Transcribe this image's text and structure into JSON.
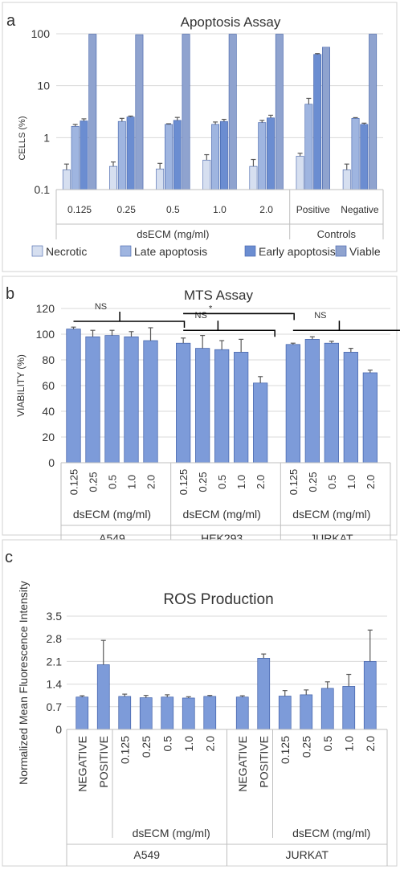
{
  "colors": {
    "necrotic": "#d6dff0",
    "late": "#9fb5e0",
    "early": "#6b8dd1",
    "viable": "#8fa3cf",
    "bar": "#7d9bd9",
    "bar_edge": "#3f5fa8"
  },
  "panels": {
    "a": {
      "letter": "a"
    },
    "b": {
      "letter": "b"
    },
    "c": {
      "letter": "c"
    }
  },
  "chart_data": [
    {
      "type": "bar",
      "title": "Apoptosis Assay",
      "ylabel": "CELLS (%)",
      "yscale": "log",
      "ylim": [
        0.1,
        100
      ],
      "yticks": [
        "0.1",
        "1",
        "10",
        "100"
      ],
      "categories": [
        "0.125",
        "0.25",
        "0.5",
        "1.0",
        "2.0",
        "Positive",
        "Negative"
      ],
      "groups": [
        {
          "label": "dsECM (mg/ml)",
          "span": [
            0,
            4
          ]
        },
        {
          "label": "Controls",
          "span": [
            5,
            6
          ]
        }
      ],
      "series": [
        {
          "name": "Necrotic",
          "color_key": "necrotic",
          "values": [
            0.24,
            0.28,
            0.25,
            0.37,
            0.28,
            0.44,
            0.24
          ],
          "errors": [
            0.07,
            0.06,
            0.07,
            0.1,
            0.1,
            0.06,
            0.07
          ]
        },
        {
          "name": "Late apoptosis",
          "color_key": "late",
          "values": [
            1.65,
            2.05,
            1.8,
            1.8,
            1.95,
            4.4,
            2.35
          ],
          "errors": [
            0.15,
            0.3,
            0.05,
            0.2,
            0.2,
            1.3,
            0.08
          ]
        },
        {
          "name": "Early apoptosis",
          "color_key": "early",
          "values": [
            2.1,
            2.5,
            2.15,
            2.05,
            2.4,
            40,
            1.8
          ],
          "errors": [
            0.2,
            0.1,
            0.3,
            0.2,
            0.3,
            1.5,
            0.1
          ]
        },
        {
          "name": "Viable",
          "color_key": "viable",
          "values": [
            98,
            96,
            98,
            98,
            98,
            55,
            98
          ],
          "errors": [
            0,
            0,
            0,
            0,
            0,
            0,
            0
          ]
        }
      ],
      "legend": "bottom"
    },
    {
      "type": "bar",
      "title": "MTS Assay",
      "ylabel": "VIABILITY (%)",
      "ylim": [
        0,
        120
      ],
      "yticks": [
        "0",
        "20",
        "40",
        "60",
        "80",
        "100",
        "120"
      ],
      "groups": [
        {
          "name": "A549",
          "sublabel": "dsECM (mg/ml)",
          "categories": [
            "0.125",
            "0.25",
            "0.5",
            "1.0",
            "2.0"
          ],
          "values": [
            104,
            98,
            99,
            98,
            95
          ],
          "errors": [
            1.5,
            5,
            4,
            4,
            10
          ]
        },
        {
          "name": "HEK293",
          "sublabel": "dsECM (mg/ml)",
          "categories": [
            "0.125",
            "0.25",
            "0.5",
            "1.0",
            "2.0"
          ],
          "values": [
            93,
            89,
            88,
            86,
            62
          ],
          "errors": [
            4,
            10,
            7,
            10,
            5
          ]
        },
        {
          "name": "JURKAT",
          "sublabel": "dsECM (mg/ml)",
          "categories": [
            "0.125",
            "0.25",
            "0.5",
            "1.0",
            "2.0"
          ],
          "values": [
            92,
            96,
            93,
            86,
            70
          ],
          "errors": [
            1,
            2,
            1.5,
            3,
            2
          ]
        }
      ],
      "annotations": [
        {
          "text": "NS",
          "group": 0,
          "y": 110,
          "from": 0,
          "to": 4
        },
        {
          "text": "NS",
          "group": 1,
          "y": 103,
          "from": 0,
          "to": 3
        },
        {
          "text": "*",
          "group": 1,
          "y": 116,
          "from": 0,
          "to": 4
        },
        {
          "text": "NS",
          "group": 2,
          "y": 103,
          "from": 0,
          "to": 4
        }
      ]
    },
    {
      "type": "bar",
      "title": "ROS Production",
      "ylabel": "Normalized Mean Fluorescence Intensity",
      "ylim": [
        0,
        3.5
      ],
      "yticks": [
        "0",
        "0.7",
        "1.4",
        "2.1",
        "2.8",
        "3.5"
      ],
      "groups": [
        {
          "name": "A549",
          "sublabel": "dsECM (mg/ml)",
          "categories": [
            "NEGATIVE",
            "POSITIVE",
            "0.125",
            "0.25",
            "0.5",
            "1.0",
            "2.0"
          ],
          "values": [
            1.0,
            2.0,
            1.02,
            0.98,
            1.0,
            0.97,
            1.02
          ],
          "errors": [
            0.04,
            0.75,
            0.07,
            0.07,
            0.07,
            0.04,
            0.03
          ]
        },
        {
          "name": "JURKAT",
          "sublabel": "dsECM (mg/ml)",
          "categories": [
            "NEGATIVE",
            "POSITIVE",
            "0.125",
            "0.25",
            "0.5",
            "1.0",
            "2.0"
          ],
          "values": [
            1.0,
            2.2,
            1.03,
            1.07,
            1.27,
            1.33,
            2.1
          ],
          "errors": [
            0.04,
            0.13,
            0.17,
            0.15,
            0.2,
            0.37,
            0.97
          ]
        }
      ]
    }
  ]
}
